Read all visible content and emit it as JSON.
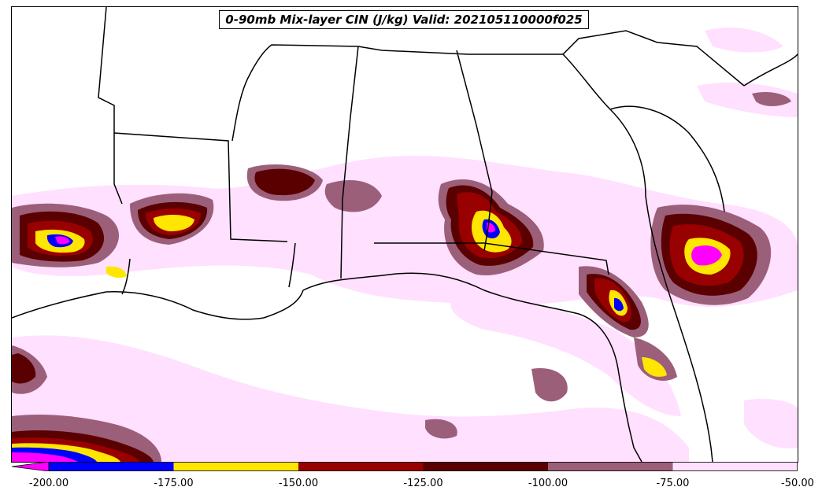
{
  "map": {
    "title": "0-90mb Mix-layer CIN (J/kg) Valid: 202105110000f025",
    "field": "Mix-layer CIN",
    "units": "J/kg",
    "region": "Southeast United States / Gulf of Mexico"
  },
  "colorbar": {
    "extend": "min",
    "levels": [
      -200,
      -175,
      -150,
      -125,
      -100,
      -75,
      -50
    ],
    "colors": [
      "#ff00ff",
      "#0000ff",
      "#ffe600",
      "#990000",
      "#5a0000",
      "#9c5f7a",
      "#ffe0ff"
    ],
    "tick_labels": [
      "-200.00",
      "-175.00",
      "-150.00",
      "-125.00",
      "-100.00",
      "-75.00",
      "-50.00"
    ]
  }
}
